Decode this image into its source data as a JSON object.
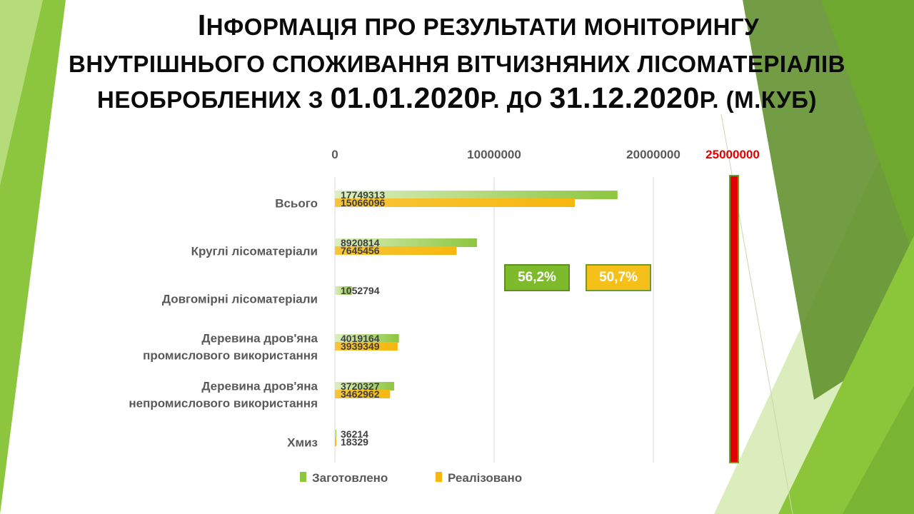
{
  "title": {
    "line1_first": "І",
    "line1_rest": "нформація про результати моніторингу",
    "line2": "внутрішнього споживання вітчизняних лісоматеріалів",
    "line3_a": "необроблених з ",
    "line3_b": "01.01.2020",
    "line3_c": "р. до ",
    "line3_d": "31.12.2020",
    "line3_e": "р. (м.куб)"
  },
  "badges": {
    "harvested_share": "56,2%",
    "sold_share": "50,7%"
  },
  "colors": {
    "harvested": "#8dc63f",
    "sold": "#f6b80f",
    "red_marker": "#e00000",
    "background_green": "#8bc34a"
  },
  "chart_data": {
    "type": "bar",
    "orientation": "horizontal",
    "title": "",
    "xlabel": "",
    "ylabel": "",
    "categories": [
      "Всього",
      "Круглі лісоматеріали",
      "Довгомірні лісоматеріали",
      "Деревина дров'яна промислового використання",
      "Деревина дров'яна непромислового використання",
      "Хмиз"
    ],
    "category_lines": [
      [
        "Всього"
      ],
      [
        "Круглі лісоматеріали"
      ],
      [
        "Довгомірні лісоматеріали"
      ],
      [
        "Деревина дров'яна",
        "промислового використання"
      ],
      [
        "Деревина дров'яна",
        "непромислового використання"
      ],
      [
        "Хмиз"
      ]
    ],
    "series": [
      {
        "name": "Заготовлено",
        "values": [
          17749313,
          8920814,
          1052794,
          4019164,
          3720327,
          36214
        ],
        "labels": [
          "17749313",
          "8920814",
          "1052794",
          "4019164",
          "3720327",
          "36214"
        ]
      },
      {
        "name": "Реалізовано",
        "values": [
          15066096,
          7645456,
          null,
          3939349,
          3462962,
          18329
        ],
        "labels": [
          "15066096",
          "7645456",
          "",
          "3939349",
          "3462962",
          "18329"
        ]
      }
    ],
    "x_ticks": [
      "0",
      "10000000",
      "20000000"
    ],
    "x_tick_values": [
      0,
      10000000,
      20000000
    ],
    "marker": {
      "label": "25000000",
      "value": 25000000
    },
    "xlim": [
      0,
      25000000
    ],
    "grid": true,
    "legend_position": "bottom"
  }
}
